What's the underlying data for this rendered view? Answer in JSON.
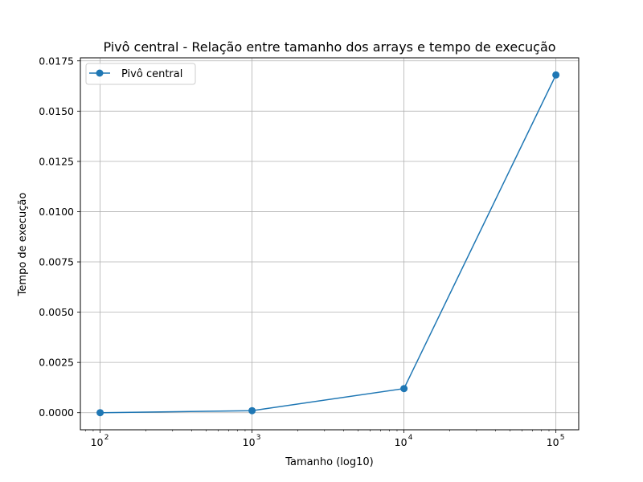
{
  "chart_data": {
    "type": "line",
    "title": "Pivô central  - Relação entre tamanho dos arrays e tempo de execução",
    "xlabel": "Tamanho (log10)",
    "ylabel": "Tempo de execução",
    "x_scale": "log",
    "x": [
      100,
      1000,
      10000,
      100000
    ],
    "x_tick_labels": [
      {
        "base": "10",
        "exp": "2"
      },
      {
        "base": "10",
        "exp": "3"
      },
      {
        "base": "10",
        "exp": "4"
      },
      {
        "base": "10",
        "exp": "5"
      }
    ],
    "y_ticks": [
      0.0,
      0.0025,
      0.005,
      0.0075,
      0.01,
      0.0125,
      0.015,
      0.0175
    ],
    "y_tick_labels": [
      "0.0000",
      "0.0025",
      "0.0050",
      "0.0075",
      "0.0100",
      "0.0125",
      "0.0150",
      "0.0175"
    ],
    "ylim": [
      -0.00085,
      0.01765
    ],
    "xlim_log10": [
      1.87,
      5.15
    ],
    "grid": true,
    "legend_position": "top-left",
    "series": [
      {
        "name": "Pivô central",
        "color": "#1f77b4",
        "marker": "circle",
        "values": [
          0.0,
          0.0001,
          0.0012,
          0.0168
        ]
      }
    ]
  }
}
